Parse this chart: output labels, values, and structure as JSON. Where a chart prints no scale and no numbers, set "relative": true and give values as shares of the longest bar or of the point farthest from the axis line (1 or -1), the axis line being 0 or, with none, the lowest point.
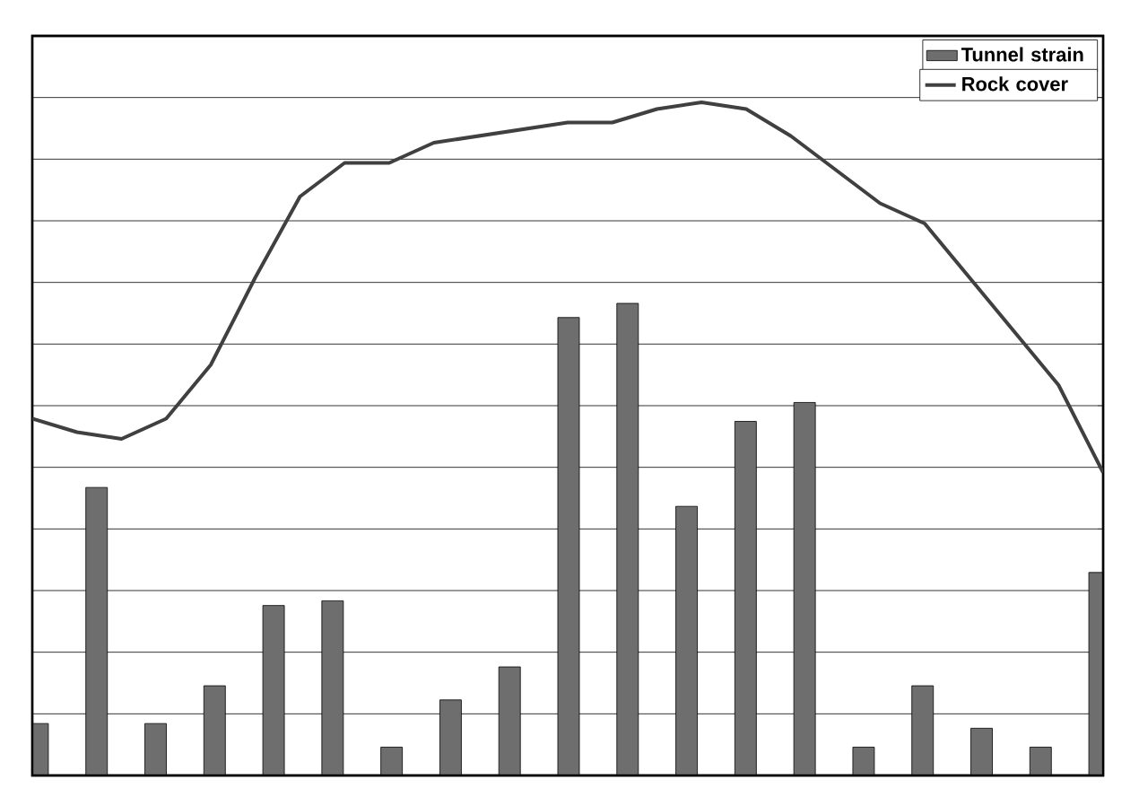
{
  "chart_data": [
    {
      "type": "bar",
      "relative": true,
      "grid": "y",
      "legend": "top right",
      "categories": [
        null,
        null,
        null,
        null,
        null,
        null,
        null,
        null,
        null,
        null,
        null,
        null,
        null,
        null,
        null,
        null,
        null,
        null,
        null
      ],
      "series": [
        {
          "name": "Tunnel strain",
          "color": "#6e6e6e",
          "values": [
            0.11,
            0.61,
            0.11,
            0.19,
            0.36,
            0.37,
            0.06,
            0.16,
            0.23,
            0.97,
            1.0,
            0.57,
            0.75,
            0.79,
            0.06,
            0.19,
            0.1,
            0.06,
            0.43
          ]
        }
      ]
    },
    {
      "type": "line",
      "relative": true,
      "legend": "top right",
      "marker": "none",
      "line_style": "solid",
      "categories": [
        null,
        null,
        null,
        null,
        null,
        null,
        null,
        null,
        null,
        null,
        null,
        null,
        null,
        null,
        null,
        null,
        null,
        null,
        null,
        null,
        null,
        null,
        null,
        null,
        null
      ],
      "series": [
        {
          "name": "Rock cover",
          "color": "#404040",
          "values": [
            0.53,
            0.51,
            0.5,
            0.53,
            0.61,
            0.74,
            0.86,
            0.91,
            0.91,
            0.94,
            0.95,
            0.96,
            0.97,
            0.97,
            0.99,
            1.0,
            0.99,
            0.95,
            0.9,
            0.85,
            0.82,
            0.74,
            0.66,
            0.58,
            0.45
          ]
        }
      ]
    }
  ]
}
